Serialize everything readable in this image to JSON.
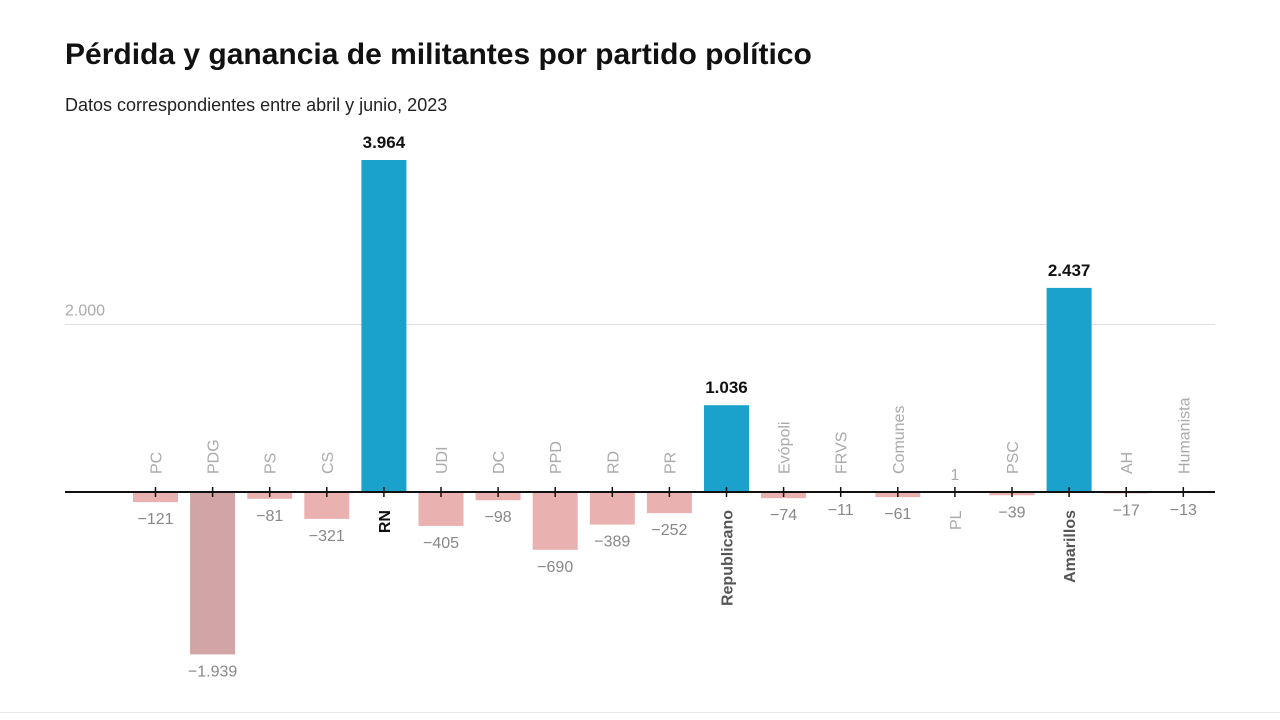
{
  "header": {
    "title": "Pérdida y ganancia de militantes por partido político",
    "subtitle": "Datos correspondientes entre abril y junio, 2023"
  },
  "colors": {
    "positive": "#1aa2cc",
    "negative": "#eab1b1",
    "highlight_negative": "#d1a5a5",
    "axis": "#111111",
    "grid": "#dddddd",
    "muted_text": "#888888",
    "label_muted": "#aaaaaa"
  },
  "chart_data": {
    "type": "bar",
    "title": "Pérdida y ganancia de militantes por partido político",
    "subtitle": "Datos correspondientes entre abril y junio, 2023",
    "categories": [
      "PC",
      "PDG",
      "PS",
      "CS",
      "RN",
      "UDI",
      "DC",
      "PPD",
      "RD",
      "PR",
      "Republicano",
      "Evópoli",
      "FRVS",
      "Comunes",
      "PL",
      "PSC",
      "Amarillos",
      "AH",
      "Humanista"
    ],
    "values": [
      -121,
      -1939,
      -81,
      -321,
      3964,
      -405,
      -98,
      -690,
      -389,
      -252,
      1036,
      -74,
      -11,
      -61,
      1,
      -39,
      2437,
      -17,
      -13
    ],
    "value_labels": [
      "−121",
      "−1.939",
      "−81",
      "−321",
      "3.964",
      "−405",
      "−98",
      "−690",
      "−389",
      "−252",
      "1.036",
      "−74",
      "−11",
      "−61",
      "1",
      "−39",
      "2.437",
      "−17",
      "−13"
    ],
    "emphasized": [
      "RN",
      "Republicano",
      "Amarillos"
    ],
    "gridlines": [
      {
        "value": 2000,
        "label": "2.000"
      }
    ],
    "ylim": [
      -2200,
      4000
    ],
    "xlabel": "",
    "ylabel": "",
    "grid": true
  }
}
